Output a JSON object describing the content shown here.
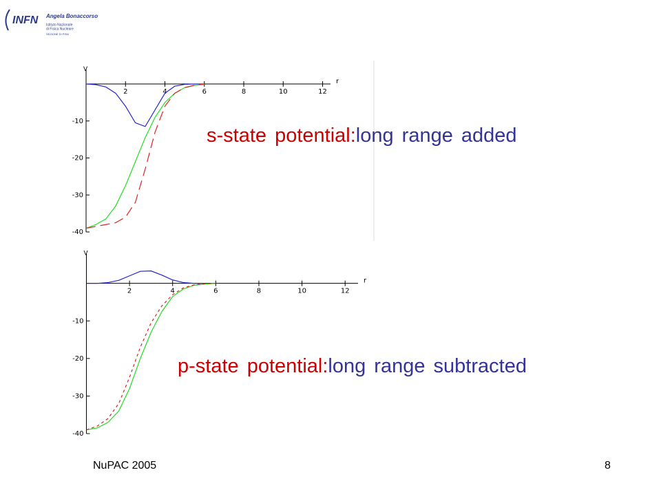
{
  "logo": {
    "mark": "INFN",
    "author": "Angela Bonaccorso",
    "institute": [
      "Istituto Nazionale",
      "di Fisica Nucleare"
    ],
    "section": "SEZIONE DI PISA"
  },
  "chart_data": [
    {
      "type": "line",
      "x_label": "r",
      "y_label": "V",
      "x": [
        0,
        0.5,
        1,
        1.5,
        2,
        2.5,
        3,
        3.5,
        4,
        4.5,
        5,
        5.5,
        6
      ],
      "xlim": [
        0,
        12.4
      ],
      "ylim": [
        -40,
        4
      ],
      "xticks": [
        2,
        4,
        6,
        8,
        10,
        12
      ],
      "yticks": [
        -10,
        -20,
        -30,
        -40
      ],
      "series": [
        {
          "color": "#2222cc",
          "line_style": "solid",
          "values": [
            0,
            -0.2,
            -0.8,
            -2.5,
            -6,
            -10.5,
            -11.5,
            -7,
            -2.5,
            -0.6,
            -0.1,
            0,
            0
          ]
        },
        {
          "color": "#22dd22",
          "line_style": "solid",
          "values": [
            -39,
            -38,
            -36.5,
            -33,
            -27.5,
            -21,
            -14.5,
            -9,
            -5,
            -2.5,
            -1,
            -0.4,
            -0.1
          ]
        },
        {
          "color": "#dd2222",
          "line_style": "dashed",
          "values": [
            -39,
            -38.5,
            -38,
            -37.5,
            -36,
            -32,
            -23,
            -13,
            -6,
            -2.5,
            -1,
            -0.3,
            0
          ]
        }
      ],
      "annotation": [
        {
          "text": "s-state potential:",
          "color": "#cc0000"
        },
        {
          "text": "long range added",
          "color": "#333399"
        }
      ]
    },
    {
      "type": "line",
      "x_label": "r",
      "y_label": "V",
      "x": [
        0,
        0.5,
        1,
        1.5,
        2,
        2.5,
        3,
        3.5,
        4,
        4.5,
        5,
        5.5,
        6
      ],
      "xlim": [
        0,
        12.6
      ],
      "ylim": [
        -40,
        8
      ],
      "xticks": [
        2,
        4,
        6,
        8,
        10,
        12
      ],
      "yticks": [
        -10,
        -20,
        -30,
        -40
      ],
      "series": [
        {
          "color": "#2222cc",
          "line_style": "solid",
          "values": [
            0,
            0,
            0.2,
            0.8,
            2,
            3.2,
            3.3,
            2.2,
            0.9,
            0.2,
            0,
            0,
            0
          ]
        },
        {
          "color": "#22dd22",
          "line_style": "solid",
          "values": [
            -39,
            -38.5,
            -37,
            -34,
            -28,
            -20,
            -13,
            -7.5,
            -3.5,
            -1.5,
            -0.5,
            -0.2,
            0
          ]
        },
        {
          "color": "#dd2222",
          "line_style": "dotted",
          "values": [
            -39,
            -38,
            -36,
            -32,
            -25,
            -17,
            -10.5,
            -6,
            -3,
            -1.2,
            -0.4,
            -0.1,
            0
          ]
        }
      ],
      "annotation": [
        {
          "text": "p-state potential:",
          "color": "#cc0000"
        },
        {
          "text": "long range subtracted",
          "color": "#333399"
        }
      ]
    }
  ],
  "footer": "NuPAC 2005",
  "page_number": "8"
}
